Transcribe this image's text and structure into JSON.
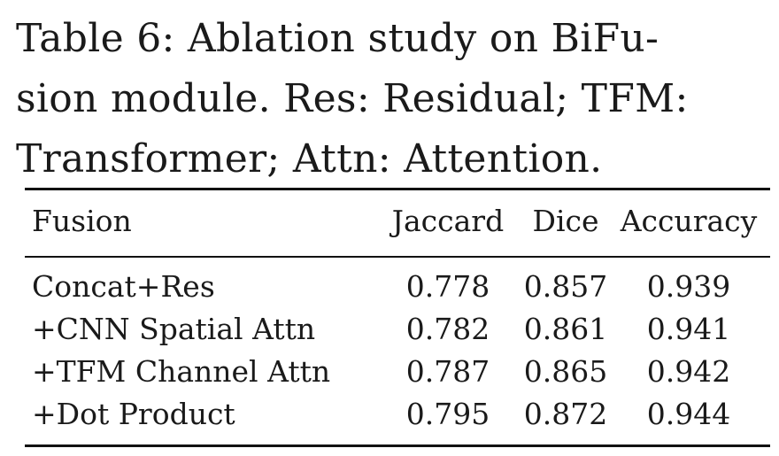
{
  "caption": {
    "lines": [
      "Table 6:  Ablation study on BiFu-",
      "sion module. Res: Residual; TFM:",
      "Transformer; Attn: Attention."
    ]
  },
  "table": {
    "headers": [
      "Fusion",
      "Jaccard",
      "Dice",
      "Accuracy"
    ],
    "rows": [
      [
        "Concat+Res",
        "0.778",
        "0.857",
        "0.939"
      ],
      [
        "+CNN Spatial Attn",
        "0.782",
        "0.861",
        "0.941"
      ],
      [
        "+TFM Channel Attn",
        "0.787",
        "0.865",
        "0.942"
      ],
      [
        "+Dot Product",
        "0.795",
        "0.872",
        "0.944"
      ]
    ]
  }
}
